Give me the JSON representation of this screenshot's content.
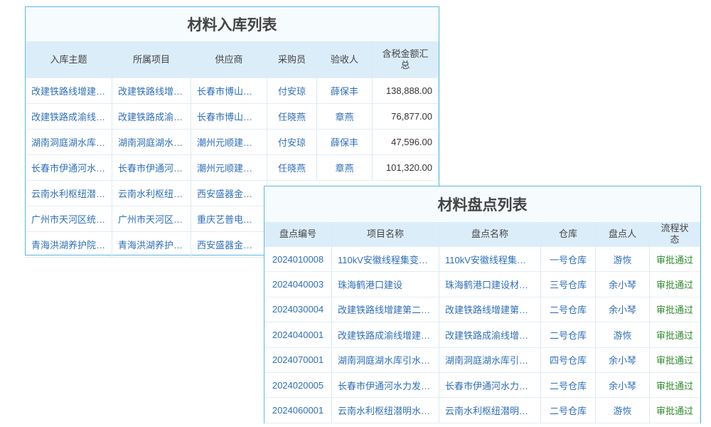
{
  "tables": [
    {
      "title": "材料入库列表",
      "headers": [
        "入库主题",
        "所属项目",
        "供应商",
        "采购员",
        "验收人",
        "含税金额汇总"
      ],
      "rows": [
        [
          "改建铁路线增建…",
          "改建铁路线增…",
          "长春市博山…",
          "付安琼",
          "薛保丰",
          "138,888.00"
        ],
        [
          "改建铁路成渝线…",
          "改建铁路成渝…",
          "长春市博山…",
          "任晓燕",
          "章燕",
          "76,877.00"
        ],
        [
          "湖南洞庭湖水库…",
          "湖南洞庭湖水…",
          "潮州元顺建…",
          "付安琼",
          "薛保丰",
          "47,596.00"
        ],
        [
          "长春市伊通河水…",
          "长春市伊通河…",
          "潮州元顺建…",
          "任晓燕",
          "章燕",
          "101,320.00"
        ],
        [
          "云南水利枢纽潜…",
          "云南水利枢纽…",
          "西安盛器金…"
        ],
        [
          "广州市天河区统…",
          "广州市天河区…",
          "重庆艺普电…"
        ],
        [
          "青海洪湖养护院…",
          "青海洪湖养护…",
          "西安盛器金…"
        ]
      ]
    },
    {
      "title": "材料盘点列表",
      "headers": [
        "盘点编号",
        "项目名称",
        "盘点名称",
        "仓库",
        "盘点人",
        "流程状态"
      ],
      "rows": [
        [
          "2024010008",
          "110kV安徽线程集变…",
          "110kV安徽线程集…",
          "一号仓库",
          "游恢",
          "审批通过"
        ],
        [
          "2024040003",
          "珠海鹤港口建设",
          "珠海鹤港口建设材…",
          "三号仓库",
          "余小琴",
          "审批通过"
        ],
        [
          "2024030004",
          "改建铁路线增建第二…",
          "改建铁路线增建第…",
          "二号仓库",
          "余小琴",
          "审批通过"
        ],
        [
          "2024040001",
          "改建铁路成渝线增建…",
          "改建铁路成渝线增…",
          "二号仓库",
          "游恢",
          "审批通过"
        ],
        [
          "2024070001",
          "湖南洞庭湖水库引水…",
          "湖南洞庭湖水库引…",
          "四号仓库",
          "余小琴",
          "审批通过"
        ],
        [
          "2024020005",
          "长春市伊通河水力发…",
          "长春市伊通河水力…",
          "二号仓库",
          "余小琴",
          "审批通过"
        ],
        [
          "2024060001",
          "云南水利枢纽潜明水…",
          "云南水利枢纽潜明…",
          "二号仓库",
          "游恢",
          "审批通过"
        ]
      ]
    }
  ]
}
